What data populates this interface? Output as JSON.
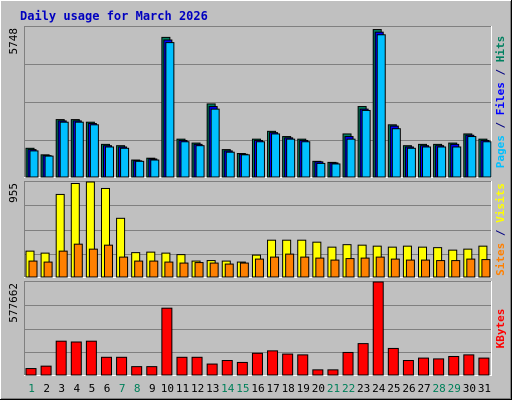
{
  "chart_data": {
    "type": "bar",
    "title": "Daily usage for March 2026",
    "categories": [
      "1",
      "2",
      "3",
      "4",
      "5",
      "6",
      "7",
      "8",
      "9",
      "10",
      "11",
      "12",
      "13",
      "14",
      "15",
      "16",
      "17",
      "18",
      "19",
      "20",
      "21",
      "22",
      "23",
      "24",
      "25",
      "26",
      "27",
      "28",
      "29",
      "30",
      "31"
    ],
    "weekend_days": [
      1,
      7,
      8,
      14,
      15,
      21,
      22,
      28,
      29
    ],
    "panels": [
      {
        "id": "hits-files-pages",
        "max_label": "5748",
        "ymax": 5748,
        "side_label_parts": [
          {
            "text": "Pages",
            "color": "#00c0ff"
          },
          {
            "text": " / ",
            "color": "#000080"
          },
          {
            "text": "Files",
            "color": "#0000ff"
          },
          {
            "text": " / ",
            "color": "#000080"
          },
          {
            "text": "Hits",
            "color": "#008060"
          }
        ],
        "series": [
          {
            "name": "Hits",
            "color": "#008060",
            "values": [
              1100,
              850,
              2200,
              2200,
              2100,
              1250,
              1200,
              650,
              720,
              5350,
              1450,
              1300,
              2800,
              1050,
              900,
              1450,
              1750,
              1550,
              1450,
              600,
              560,
              1650,
              2700,
              5650,
              2000,
              1200,
              1250,
              1250,
              1300,
              1650,
              1450
            ]
          },
          {
            "name": "Files",
            "color": "#0000ff",
            "values": [
              1050,
              820,
              2150,
              2150,
              2050,
              1200,
              1150,
              620,
              690,
              5250,
              1400,
              1250,
              2700,
              1000,
              870,
              1400,
              1700,
              1500,
              1400,
              580,
              540,
              1550,
              2600,
              5550,
              1950,
              1150,
              1200,
              1200,
              1250,
              1600,
              1400
            ]
          },
          {
            "name": "Pages",
            "color": "#00c0ff",
            "values": [
              1000,
              800,
              2100,
              2100,
              2000,
              1150,
              1100,
              600,
              650,
              5150,
              1350,
              1200,
              2600,
              950,
              850,
              1350,
              1650,
              1450,
              1350,
              520,
              500,
              1450,
              2550,
              5450,
              1850,
              1100,
              1150,
              1150,
              1150,
              1550,
              1350
            ]
          }
        ]
      },
      {
        "id": "visits-sites",
        "max_label": "955",
        "ymax": 955,
        "side_label_parts": [
          {
            "text": "Sites",
            "color": "#ff8000"
          },
          {
            "text": " / ",
            "color": "#000080"
          },
          {
            "text": "Visits",
            "color": "#ffff00"
          }
        ],
        "series": [
          {
            "name": "Visits",
            "color": "#ffff00",
            "values": [
              260,
              240,
              830,
              940,
              955,
              890,
              590,
              245,
              250,
              240,
              225,
              160,
              165,
              160,
              150,
              220,
              370,
              370,
              370,
              350,
              300,
              325,
              320,
              310,
              300,
              310,
              300,
              295,
              270,
              280,
              310
            ]
          },
          {
            "name": "Sites",
            "color": "#ff8000",
            "values": [
              160,
              150,
              260,
              330,
              280,
              320,
              200,
              160,
              160,
              150,
              140,
              145,
              140,
              130,
              140,
              180,
              200,
              230,
              200,
              190,
              170,
              185,
              190,
              200,
              180,
              170,
              170,
              165,
              165,
              180,
              175
            ]
          }
        ]
      },
      {
        "id": "kbytes",
        "max_label": "577662",
        "ymax": 577662,
        "side_label_parts": [
          {
            "text": "KBytes",
            "color": "#ff0000"
          }
        ],
        "series": [
          {
            "name": "KBytes",
            "color": "#ff0000",
            "values": [
              40000,
              55000,
              210000,
              205000,
              210000,
              110000,
              110000,
              52000,
              52000,
              415000,
              110000,
              110000,
              68000,
              90000,
              78000,
              135000,
              150000,
              130000,
              125000,
              32000,
              32000,
              140000,
              195000,
              577662,
              165000,
              90000,
              105000,
              100000,
              115000,
              125000,
              105000
            ]
          }
        ]
      }
    ]
  }
}
